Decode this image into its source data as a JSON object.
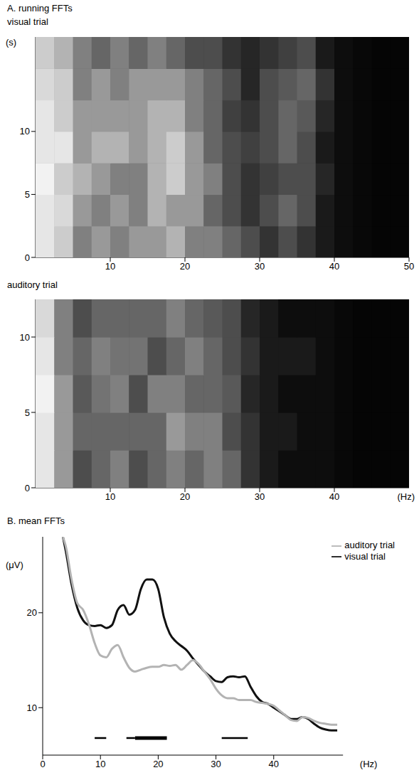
{
  "chart_data": [
    {
      "type": "heatmap",
      "panel": "A. running FFTs",
      "title": "visual trial",
      "y_label": "(s)",
      "xlim": [
        0,
        50
      ],
      "xticks": [
        10,
        20,
        30,
        40,
        50
      ],
      "ylim": [
        0,
        17.5
      ],
      "yticks": [
        0,
        5,
        10
      ],
      "x_bins": [
        0,
        2.5,
        5,
        7.5,
        10,
        12.5,
        15,
        17.5,
        20,
        22.5,
        25,
        27.5,
        30,
        32.5,
        35,
        37.5,
        40,
        42.5,
        45,
        47.5,
        50
      ],
      "y_bins": [
        0,
        2.5,
        5,
        7.5,
        10,
        12.5,
        15,
        17.5
      ],
      "cells": [
        [
          0.9,
          0.8,
          0.5,
          0.6,
          0.5,
          0.6,
          0.6,
          0.7,
          0.5,
          0.5,
          0.4,
          0.3,
          0.2,
          0.3,
          0.2,
          0.1,
          0.05,
          0.03,
          0.02,
          0.02
        ],
        [
          0.9,
          0.85,
          0.6,
          0.5,
          0.6,
          0.5,
          0.7,
          0.6,
          0.6,
          0.4,
          0.3,
          0.2,
          0.3,
          0.4,
          0.3,
          0.1,
          0.05,
          0.03,
          0.02,
          0.02
        ],
        [
          0.95,
          0.8,
          0.7,
          0.6,
          0.5,
          0.5,
          0.7,
          0.8,
          0.6,
          0.5,
          0.3,
          0.2,
          0.25,
          0.3,
          0.3,
          0.15,
          0.05,
          0.03,
          0.02,
          0.02
        ],
        [
          0.9,
          0.9,
          0.6,
          0.7,
          0.7,
          0.6,
          0.7,
          0.8,
          0.6,
          0.4,
          0.3,
          0.25,
          0.3,
          0.4,
          0.3,
          0.1,
          0.05,
          0.03,
          0.02,
          0.02
        ],
        [
          0.9,
          0.8,
          0.6,
          0.6,
          0.6,
          0.6,
          0.7,
          0.7,
          0.5,
          0.4,
          0.25,
          0.2,
          0.3,
          0.4,
          0.35,
          0.15,
          0.05,
          0.03,
          0.02,
          0.02
        ],
        [
          0.85,
          0.8,
          0.5,
          0.6,
          0.5,
          0.6,
          0.6,
          0.6,
          0.5,
          0.4,
          0.3,
          0.15,
          0.3,
          0.35,
          0.4,
          0.2,
          0.05,
          0.03,
          0.02,
          0.02
        ],
        [
          0.8,
          0.7,
          0.5,
          0.4,
          0.5,
          0.4,
          0.5,
          0.4,
          0.3,
          0.3,
          0.2,
          0.15,
          0.2,
          0.25,
          0.3,
          0.1,
          0.05,
          0.03,
          0.02,
          0.02
        ]
      ]
    },
    {
      "type": "heatmap",
      "title": "auditory trial",
      "x_label": "(Hz)",
      "xlim": [
        0,
        50
      ],
      "xticks": [
        10,
        20,
        30,
        40
      ],
      "ylim": [
        0,
        12.5
      ],
      "yticks": [
        0,
        5,
        10
      ],
      "x_bins": [
        0,
        2.5,
        5,
        7.5,
        10,
        12.5,
        15,
        17.5,
        20,
        22.5,
        25,
        27.5,
        30,
        32.5,
        35,
        37.5,
        40,
        42.5,
        45,
        47.5,
        50
      ],
      "y_bins": [
        0,
        2.5,
        5,
        7.5,
        10,
        12.5
      ],
      "cells": [
        [
          0.9,
          0.6,
          0.3,
          0.4,
          0.5,
          0.3,
          0.4,
          0.5,
          0.4,
          0.5,
          0.4,
          0.2,
          0.1,
          0.05,
          0.05,
          0.05,
          0.03,
          0.02,
          0.02,
          0.02
        ],
        [
          0.9,
          0.6,
          0.4,
          0.4,
          0.4,
          0.4,
          0.4,
          0.6,
          0.5,
          0.5,
          0.3,
          0.2,
          0.1,
          0.1,
          0.05,
          0.05,
          0.03,
          0.02,
          0.02,
          0.02
        ],
        [
          0.95,
          0.6,
          0.35,
          0.45,
          0.5,
          0.3,
          0.5,
          0.5,
          0.4,
          0.4,
          0.35,
          0.15,
          0.1,
          0.05,
          0.05,
          0.05,
          0.03,
          0.02,
          0.02,
          0.02
        ],
        [
          0.9,
          0.5,
          0.4,
          0.5,
          0.45,
          0.45,
          0.3,
          0.4,
          0.5,
          0.4,
          0.3,
          0.2,
          0.1,
          0.1,
          0.1,
          0.05,
          0.03,
          0.02,
          0.02,
          0.02
        ],
        [
          0.85,
          0.5,
          0.3,
          0.4,
          0.4,
          0.4,
          0.4,
          0.5,
          0.4,
          0.35,
          0.3,
          0.15,
          0.1,
          0.05,
          0.05,
          0.05,
          0.03,
          0.02,
          0.02,
          0.02
        ]
      ]
    },
    {
      "type": "line",
      "panel": "B. mean FFTs",
      "x_label": "(Hz)",
      "y_label": "(μV)",
      "xlim": [
        0,
        52
      ],
      "xticks": [
        0,
        10,
        20,
        30,
        40
      ],
      "ylim": [
        5,
        28
      ],
      "yticks": [
        10,
        20
      ],
      "legend": "upper right",
      "x": [
        3.5,
        4,
        5,
        6,
        7,
        8,
        9,
        10,
        11,
        12,
        13,
        14,
        15,
        16,
        17,
        18,
        19,
        20,
        21,
        22,
        23,
        24,
        25,
        26,
        27,
        28,
        29,
        30,
        31,
        32,
        33,
        34,
        35,
        36,
        37,
        38,
        39,
        40,
        41,
        42,
        43,
        44,
        45,
        46,
        47,
        48,
        49,
        50,
        51
      ],
      "series": [
        {
          "name": "visual trial",
          "color": "#111111",
          "values": [
            28,
            26.5,
            23,
            20.5,
            19.2,
            18.7,
            18.6,
            18.7,
            18.4,
            18.7,
            20.3,
            20.8,
            19.8,
            20.3,
            22.5,
            23.5,
            23.5,
            22.5,
            19.5,
            17.8,
            17,
            16.5,
            16,
            15.2,
            14.5,
            13.8,
            13.3,
            12.8,
            12.7,
            13.2,
            13.3,
            13.2,
            13.3,
            12.2,
            11.2,
            10.6,
            10.4,
            10,
            9.6,
            9.2,
            8.8,
            8.8,
            9,
            8.8,
            8.3,
            7.9,
            7.7,
            7.6,
            7.6
          ]
        },
        {
          "name": "auditory trial",
          "color": "#b3b3b3",
          "values": [
            28,
            27,
            23.5,
            21,
            20.3,
            18.8,
            16.8,
            15.5,
            15.3,
            16.2,
            16.6,
            15.3,
            14.2,
            13.8,
            14,
            14.2,
            14.3,
            14.3,
            14.5,
            14.4,
            14.5,
            14,
            14.5,
            15,
            14.6,
            13.8,
            13,
            12,
            11.3,
            11,
            11,
            10.8,
            10.8,
            10.8,
            10.6,
            10.5,
            10.4,
            10.2,
            9.7,
            9.2,
            8.7,
            8.6,
            9,
            8.9,
            8.6,
            8.4,
            8.3,
            8.2,
            8.2
          ]
        }
      ],
      "significance_y": 6.8,
      "significance": [
        {
          "start": 9,
          "end": 11,
          "level": 1
        },
        {
          "start": 14.5,
          "end": 16,
          "level": 1
        },
        {
          "start": 16,
          "end": 21.5,
          "level": 2
        },
        {
          "start": 31,
          "end": 35.5,
          "level": 1
        }
      ]
    }
  ]
}
